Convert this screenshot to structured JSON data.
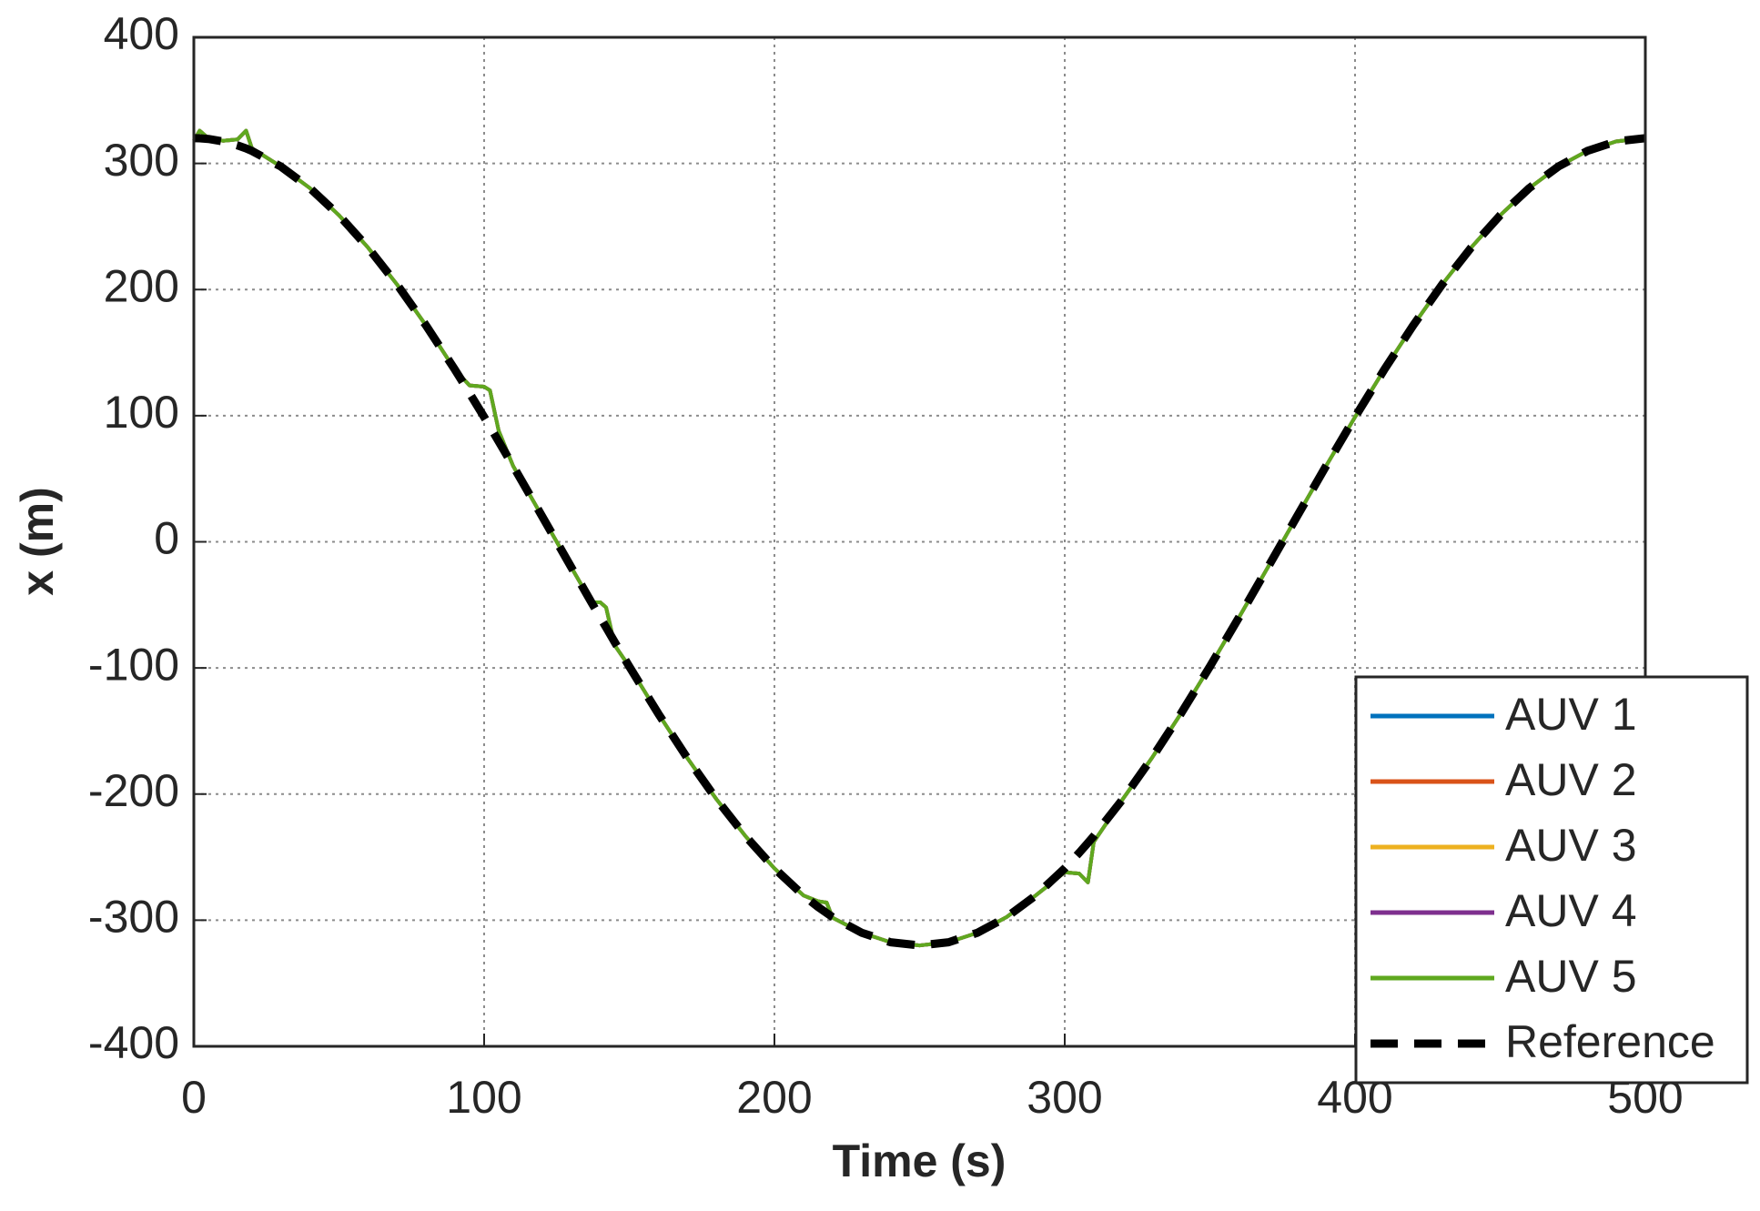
{
  "chart_data": {
    "type": "line",
    "xlabel": "Time (s)",
    "ylabel": "x (m)",
    "x": [
      0,
      2,
      5,
      10,
      15,
      18,
      20,
      30,
      40,
      50,
      60,
      70,
      80,
      90,
      95,
      100,
      102,
      105,
      110,
      120,
      130,
      137,
      140,
      142,
      145,
      150,
      160,
      170,
      180,
      190,
      200,
      210,
      215,
      218,
      220,
      230,
      240,
      250,
      260,
      270,
      280,
      290,
      300,
      305,
      308,
      310,
      320,
      330,
      340,
      350,
      360,
      370,
      380,
      390,
      400,
      410,
      420,
      430,
      440,
      450,
      460,
      470,
      480,
      490,
      500
    ],
    "series": [
      {
        "name": "AUV 1",
        "color": "#0072bd",
        "dash": false,
        "values": [
          318,
          326,
          320,
          318,
          319,
          326,
          312,
          297.5,
          280.4,
          258.9,
          233.3,
          204.0,
          171.5,
          136.3,
          124,
          123,
          120,
          88,
          60.0,
          20.1,
          -20.1,
          -48,
          -48,
          -52,
          -82,
          -98.9,
          -136.3,
          -171.5,
          -204.0,
          -233.3,
          -258.9,
          -280.4,
          -285,
          -286,
          -298,
          -309.9,
          -317.5,
          -320,
          -317.5,
          -309.9,
          -297.5,
          -280.4,
          -262,
          -263,
          -270,
          -238,
          -204.0,
          -171.5,
          -136.3,
          -98.9,
          -60.0,
          -20.1,
          20.1,
          60.0,
          98.9,
          136.3,
          171.5,
          204.0,
          233.3,
          258.9,
          280.4,
          297.5,
          309.9,
          317.5,
          320
        ]
      },
      {
        "name": "AUV 2",
        "color": "#d95319",
        "dash": false,
        "values": [
          318,
          326,
          320,
          318,
          319,
          326,
          312,
          297.5,
          280.4,
          258.9,
          233.3,
          204.0,
          171.5,
          136.3,
          124,
          123,
          120,
          88,
          60.0,
          20.1,
          -20.1,
          -48,
          -48,
          -52,
          -82,
          -98.9,
          -136.3,
          -171.5,
          -204.0,
          -233.3,
          -258.9,
          -280.4,
          -285,
          -286,
          -298,
          -309.9,
          -317.5,
          -320,
          -317.5,
          -309.9,
          -297.5,
          -280.4,
          -262,
          -263,
          -270,
          -238,
          -204.0,
          -171.5,
          -136.3,
          -98.9,
          -60.0,
          -20.1,
          20.1,
          60.0,
          98.9,
          136.3,
          171.5,
          204.0,
          233.3,
          258.9,
          280.4,
          297.5,
          309.9,
          317.5,
          320
        ]
      },
      {
        "name": "AUV 3",
        "color": "#edb120",
        "dash": false,
        "values": [
          318,
          326,
          320,
          318,
          319,
          326,
          312,
          297.5,
          280.4,
          258.9,
          233.3,
          204.0,
          171.5,
          136.3,
          124,
          123,
          120,
          88,
          60.0,
          20.1,
          -20.1,
          -48,
          -48,
          -52,
          -82,
          -98.9,
          -136.3,
          -171.5,
          -204.0,
          -233.3,
          -258.9,
          -280.4,
          -285,
          -286,
          -298,
          -309.9,
          -317.5,
          -320,
          -317.5,
          -309.9,
          -297.5,
          -280.4,
          -262,
          -263,
          -270,
          -238,
          -204.0,
          -171.5,
          -136.3,
          -98.9,
          -60.0,
          -20.1,
          20.1,
          60.0,
          98.9,
          136.3,
          171.5,
          204.0,
          233.3,
          258.9,
          280.4,
          297.5,
          309.9,
          317.5,
          320
        ]
      },
      {
        "name": "AUV 4",
        "color": "#7e2f8e",
        "dash": false,
        "values": [
          318,
          326,
          320,
          318,
          319,
          326,
          312,
          297.5,
          280.4,
          258.9,
          233.3,
          204.0,
          171.5,
          136.3,
          124,
          123,
          120,
          88,
          60.0,
          20.1,
          -20.1,
          -48,
          -48,
          -52,
          -82,
          -98.9,
          -136.3,
          -171.5,
          -204.0,
          -233.3,
          -258.9,
          -280.4,
          -285,
          -286,
          -298,
          -309.9,
          -317.5,
          -320,
          -317.5,
          -309.9,
          -297.5,
          -280.4,
          -262,
          -263,
          -270,
          -238,
          -204.0,
          -171.5,
          -136.3,
          -98.9,
          -60.0,
          -20.1,
          20.1,
          60.0,
          98.9,
          136.3,
          171.5,
          204.0,
          233.3,
          258.9,
          280.4,
          297.5,
          309.9,
          317.5,
          320
        ]
      },
      {
        "name": "AUV 5",
        "color": "#5fa81f",
        "dash": false,
        "values": [
          318,
          326,
          320,
          318,
          319,
          326,
          312,
          297.5,
          280.4,
          258.9,
          233.3,
          204.0,
          171.5,
          136.3,
          124,
          123,
          120,
          88,
          60.0,
          20.1,
          -20.1,
          -48,
          -48,
          -52,
          -82,
          -98.9,
          -136.3,
          -171.5,
          -204.0,
          -233.3,
          -258.9,
          -280.4,
          -285,
          -286,
          -298,
          -309.9,
          -317.5,
          -320,
          -317.5,
          -309.9,
          -297.5,
          -280.4,
          -262,
          -263,
          -270,
          -238,
          -204.0,
          -171.5,
          -136.3,
          -98.9,
          -60.0,
          -20.1,
          20.1,
          60.0,
          98.9,
          136.3,
          171.5,
          204.0,
          233.3,
          258.9,
          280.4,
          297.5,
          309.9,
          317.5,
          320
        ]
      },
      {
        "name": "Reference",
        "color": "#000000",
        "dash": true,
        "values": [
          320,
          319.9,
          319.4,
          317.5,
          314.3,
          311.9,
          309.9,
          297.5,
          280.4,
          258.9,
          233.3,
          204.0,
          171.5,
          136.3,
          117.8,
          98.9,
          91.3,
          79.6,
          60.0,
          20.1,
          -20.1,
          -48.1,
          -60.0,
          -67.8,
          -79.6,
          -98.9,
          -136.3,
          -171.5,
          -204.0,
          -233.3,
          -258.9,
          -280.4,
          -289.5,
          -294.3,
          -297.5,
          -309.9,
          -317.5,
          -320,
          -317.5,
          -309.9,
          -297.5,
          -280.4,
          -258.9,
          -246.6,
          -238.7,
          -233.3,
          -204.0,
          -171.5,
          -136.3,
          -98.9,
          -60.0,
          -20.1,
          20.1,
          60.0,
          98.9,
          136.3,
          171.5,
          204.0,
          233.3,
          258.9,
          280.4,
          297.5,
          309.9,
          317.5,
          320
        ]
      }
    ],
    "xlim": [
      0,
      500
    ],
    "xticks": [
      0,
      100,
      200,
      300,
      400,
      500
    ],
    "ylim": [
      -400,
      400
    ],
    "yticks": [
      -400,
      -300,
      -200,
      -100,
      0,
      100,
      200,
      300,
      400
    ],
    "grid": true,
    "legend": "lower right"
  }
}
